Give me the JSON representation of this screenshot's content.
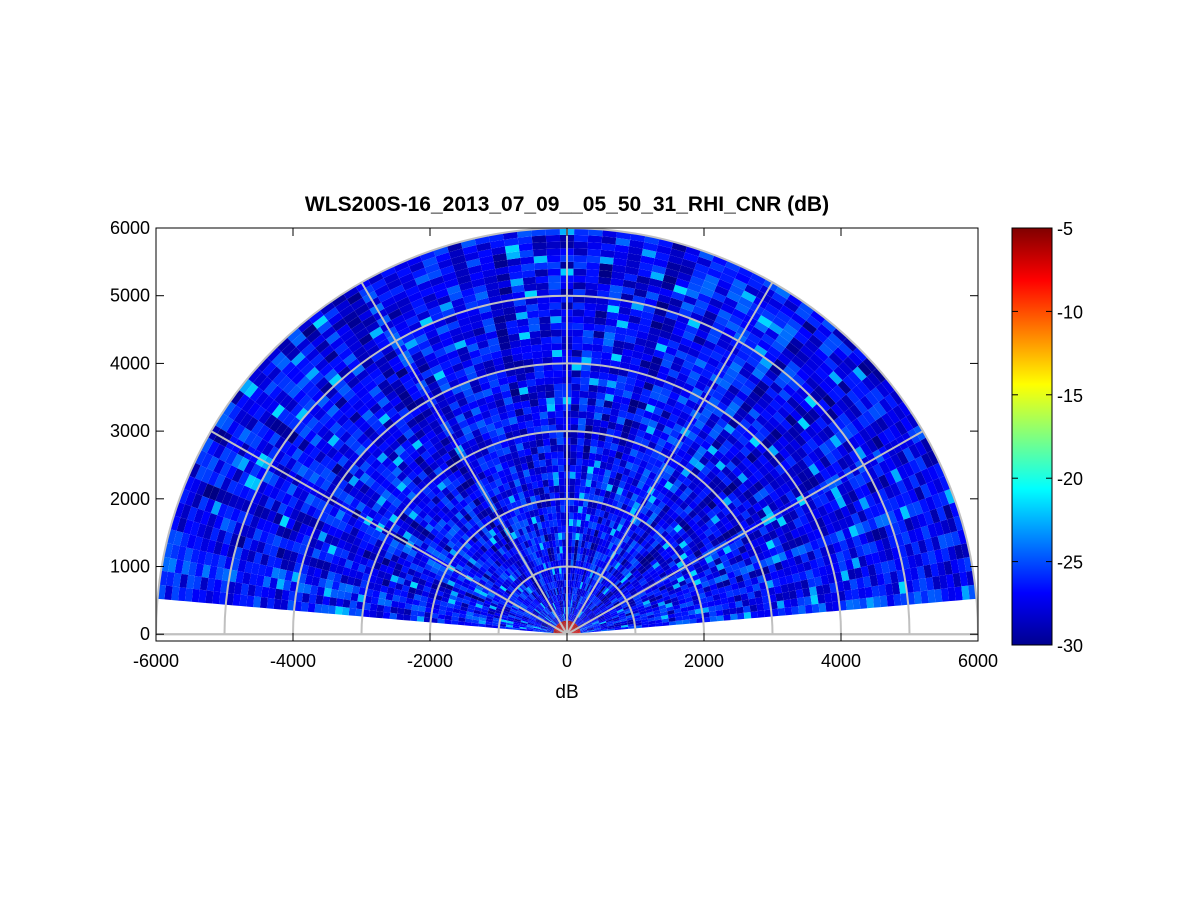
{
  "chart_data": {
    "type": "heatmap",
    "subtype": "polar-rhi-sector",
    "title": "WLS200S-16_2013_07_09__05_50_31_RHI_CNR (dB)",
    "xlabel": "dB",
    "ylabel": "",
    "xlim": [
      -6000,
      6000
    ],
    "ylim": [
      -100,
      6000
    ],
    "x_ticks": [
      "-6000",
      "-4000",
      "-2000",
      "0",
      "2000",
      "4000",
      "6000"
    ],
    "y_ticks": [
      "0",
      "1000",
      "2000",
      "3000",
      "4000",
      "5000",
      "6000"
    ],
    "x_tick_values": [
      -6000,
      -4000,
      -2000,
      0,
      2000,
      4000,
      6000
    ],
    "y_tick_values": [
      0,
      1000,
      2000,
      3000,
      4000,
      5000,
      6000
    ],
    "polar_grid": {
      "range_rings": [
        1000,
        2000,
        3000,
        4000,
        5000,
        6000
      ],
      "spokes_deg": [
        0,
        30,
        60,
        90,
        120,
        150,
        180
      ]
    },
    "scan": {
      "elevation_start_deg": 5,
      "elevation_end_deg": 175,
      "max_range": 6000,
      "typical_value_db": -27,
      "value_range_db": [
        -30,
        -22
      ],
      "near_origin_peak_db": -6
    },
    "colorbar": {
      "colormap": "jet",
      "min": -30,
      "max": -5,
      "ticks": [
        "-5",
        "-10",
        "-15",
        "-20",
        "-25",
        "-30"
      ],
      "tick_values": [
        -5,
        -10,
        -15,
        -20,
        -25,
        -30
      ]
    },
    "grid": true
  }
}
